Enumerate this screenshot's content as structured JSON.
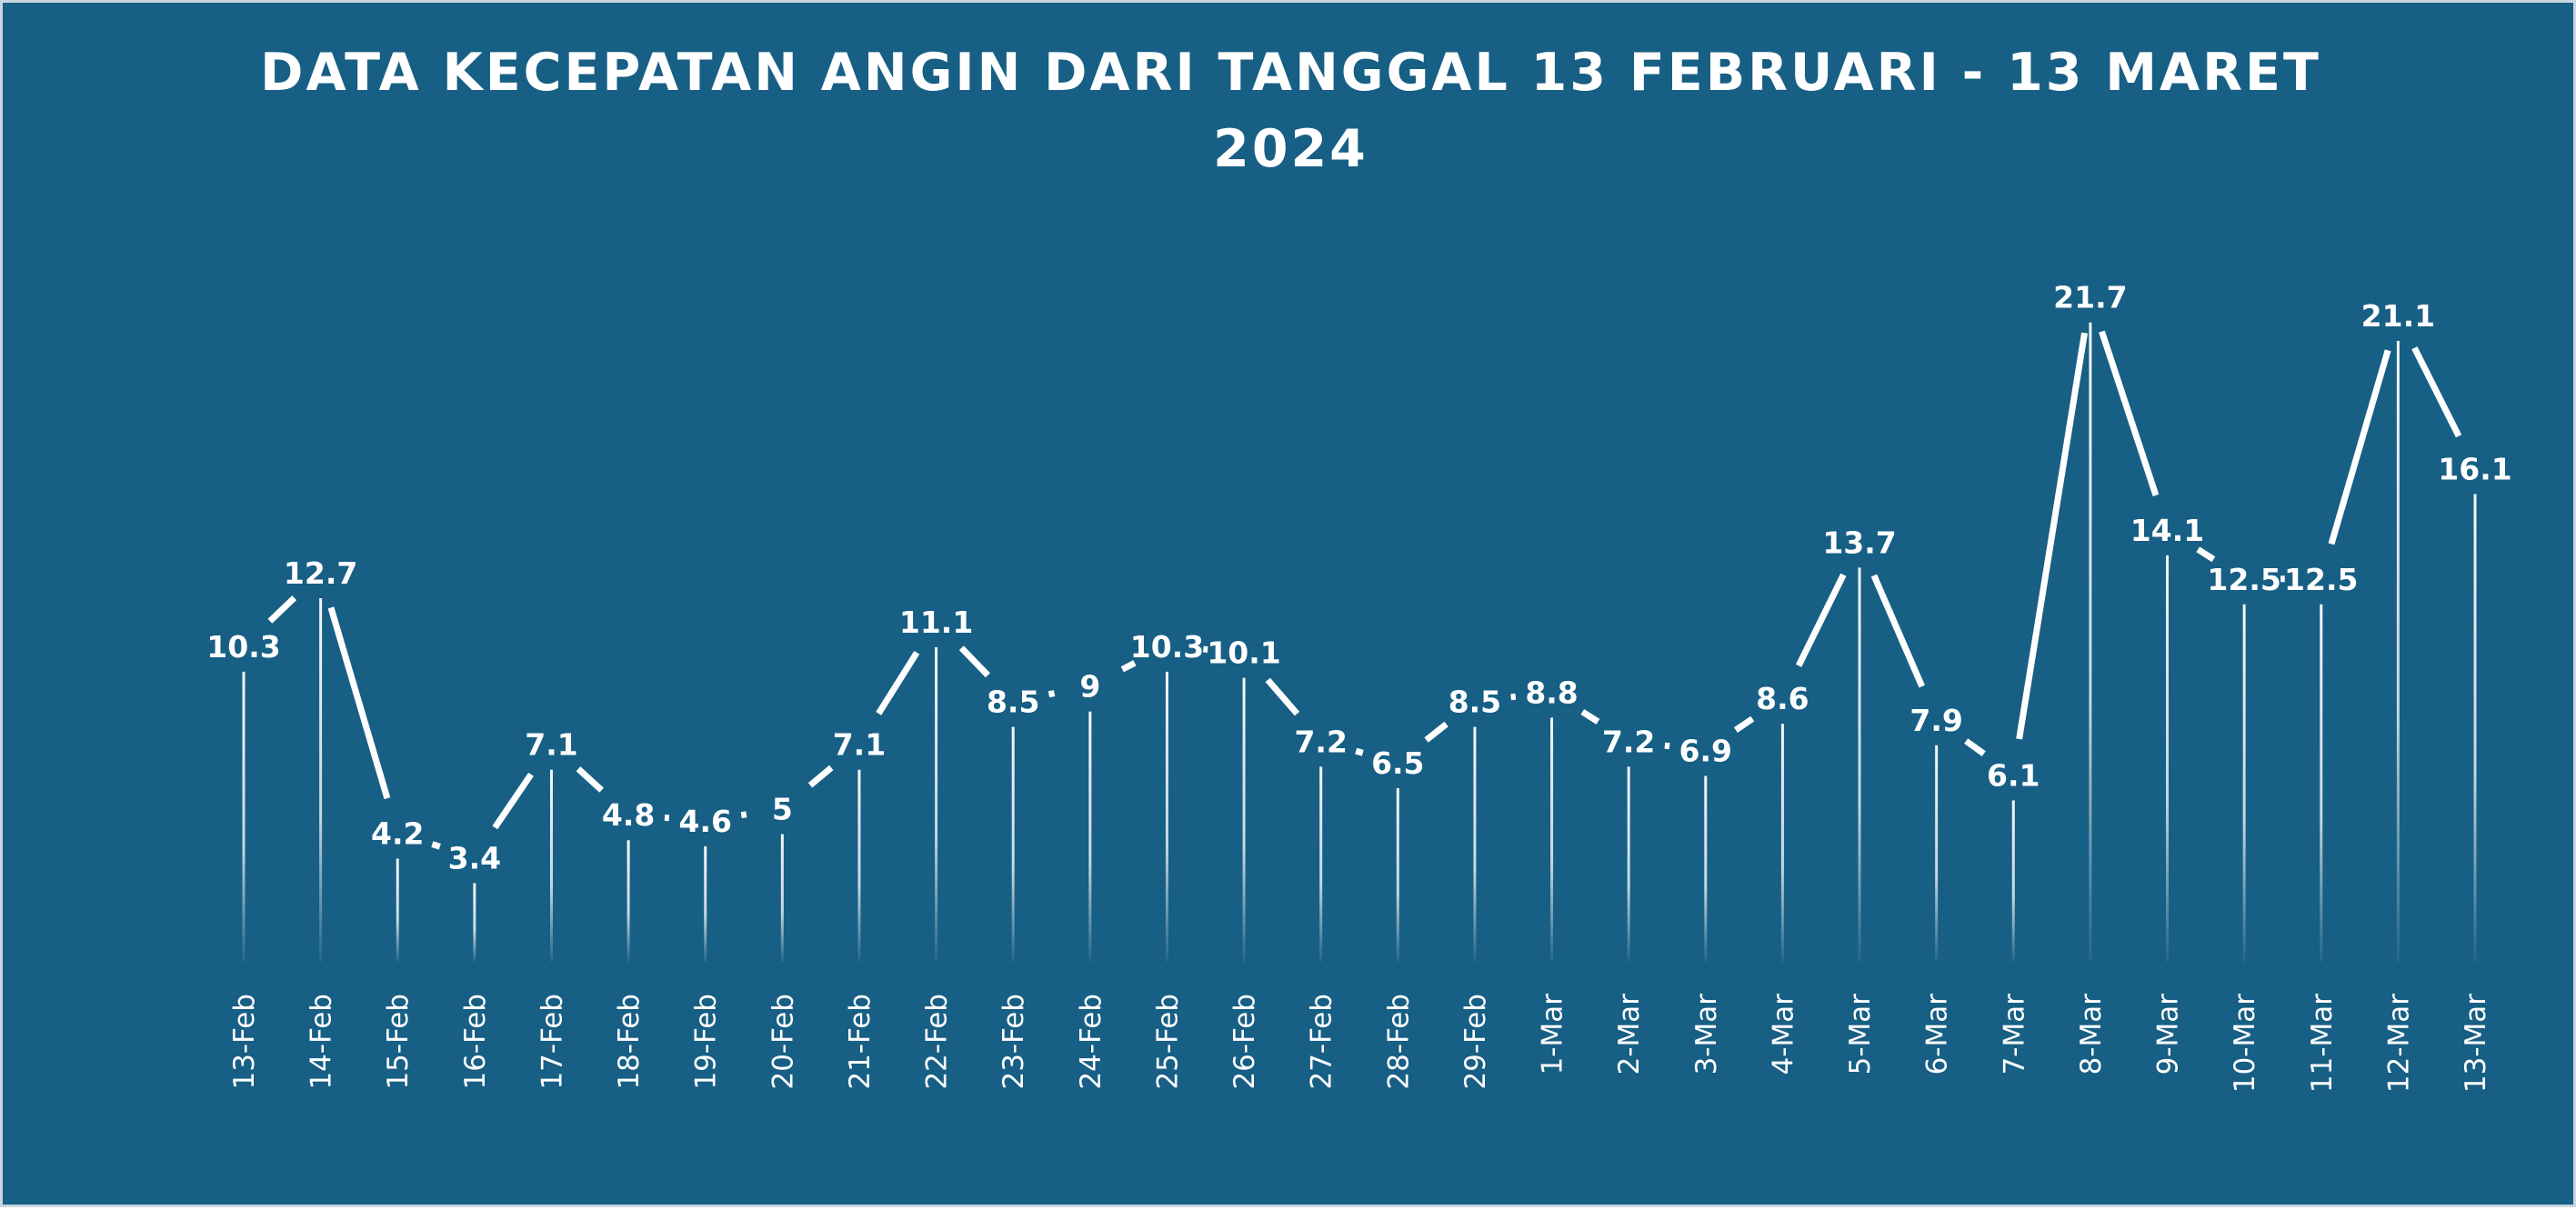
{
  "chart_data": {
    "type": "line",
    "title": "DATA KECEPATAN ANGIN DARI TANGGAL 13 FEBRUARI - 13 MARET",
    "title_line2": "2024",
    "xlabel": "",
    "ylabel": "",
    "categories": [
      "13-Feb",
      "14-Feb",
      "15-Feb",
      "16-Feb",
      "17-Feb",
      "18-Feb",
      "19-Feb",
      "20-Feb",
      "21-Feb",
      "22-Feb",
      "23-Feb",
      "24-Feb",
      "25-Feb",
      "26-Feb",
      "27-Feb",
      "28-Feb",
      "29-Feb",
      "1-Mar",
      "2-Mar",
      "3-Mar",
      "4-Mar",
      "5-Mar",
      "6-Mar",
      "7-Mar",
      "8-Mar",
      "9-Mar",
      "10-Mar",
      "11-Mar",
      "12-Mar",
      "13-Mar"
    ],
    "values": [
      10.3,
      12.7,
      4.2,
      3.4,
      7.1,
      4.8,
      4.6,
      5,
      7.1,
      11.1,
      8.5,
      9,
      10.3,
      10.1,
      7.2,
      6.5,
      8.5,
      8.8,
      7.2,
      6.9,
      8.6,
      13.7,
      7.9,
      6.1,
      21.7,
      14.1,
      12.5,
      12.5,
      21.1,
      16.1
    ],
    "ylim": [
      0,
      23
    ],
    "grid": false,
    "legend": "none",
    "drop_lines": true,
    "data_labels": true,
    "colors": {
      "background": "#175f84",
      "line": "#ffffff",
      "text": "#ffffff",
      "frame": "#c9d6df"
    }
  }
}
